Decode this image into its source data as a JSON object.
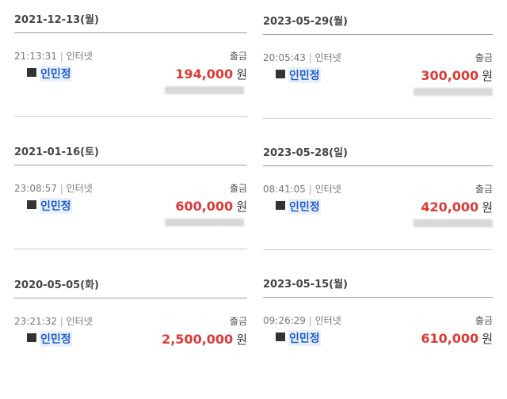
{
  "columns": [
    {
      "groups": [
        {
          "date": "2021-12-13(월)",
          "time": "21:13:31",
          "channel": "인터넷",
          "type": "출금",
          "name": "인민정",
          "amount": "194,000",
          "unit": "원"
        },
        {
          "date": "2021-01-16(토)",
          "time": "23:08:57",
          "channel": "인터넷",
          "type": "출금",
          "name": "인민정",
          "amount": "600,000",
          "unit": "원"
        },
        {
          "date": "2020-05-05(화)",
          "time": "23:21:32",
          "channel": "인터넷",
          "type": "출금",
          "name": "인민정",
          "amount": "2,500,000",
          "unit": "원"
        }
      ]
    },
    {
      "groups": [
        {
          "date": "2023-05-29(월)",
          "time": "20:05:43",
          "channel": "인터넷",
          "type": "출금",
          "name": "인민정",
          "amount": "300,000",
          "unit": "원"
        },
        {
          "date": "2023-05-28(일)",
          "time": "08:41:05",
          "channel": "인터넷",
          "type": "출금",
          "name": "인민정",
          "amount": "420,000",
          "unit": "원"
        },
        {
          "date": "2023-05-15(월)",
          "time": "09:26:29",
          "channel": "인터넷",
          "type": "출금",
          "name": "인민정",
          "amount": "610,000",
          "unit": "원"
        }
      ]
    }
  ],
  "separator": "|",
  "colors": {
    "amount": "#dc3a36",
    "name": "#1d5bd0"
  }
}
